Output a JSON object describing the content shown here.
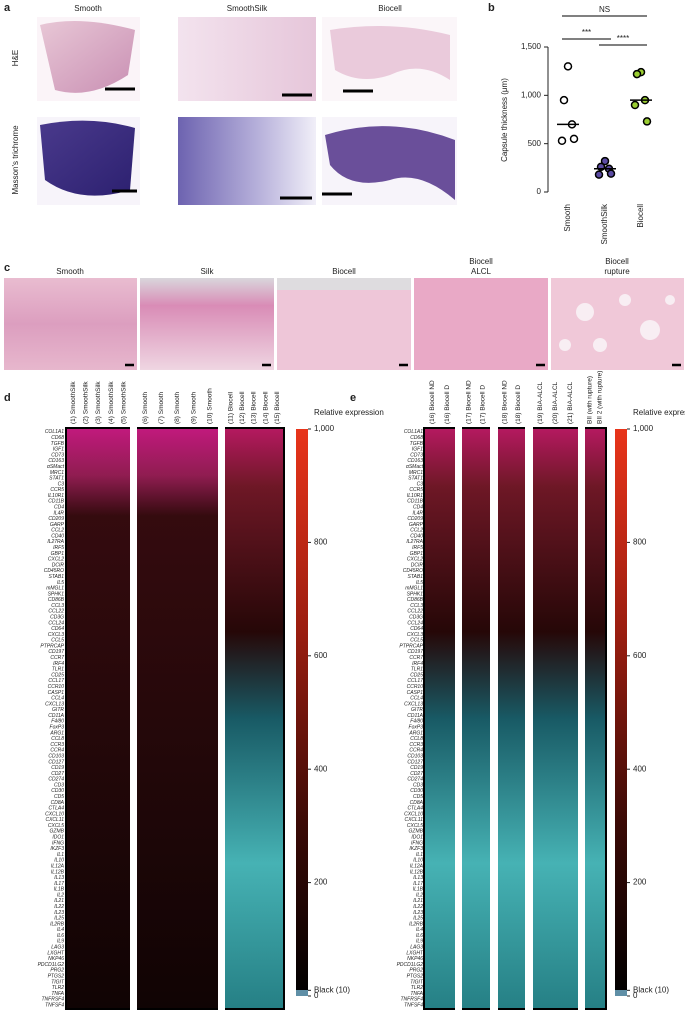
{
  "panel_a": {
    "label": "a",
    "columns": [
      "Smooth",
      "SmoothSilk",
      "Biocell"
    ],
    "rows": [
      "H&E",
      "Masson's trichrome"
    ]
  },
  "chart_data": {
    "type": "strip",
    "label": "b",
    "ylabel": "Capsule thickness (μm)",
    "categories": [
      "Smooth",
      "SmoothSilk",
      "Biocell"
    ],
    "colors": [
      "#ffffff",
      "#5b4ba3",
      "#9acd32"
    ],
    "values": [
      [
        1300,
        950,
        700,
        530,
        550
      ],
      [
        320,
        260,
        240,
        180,
        190
      ],
      [
        1240,
        1220,
        950,
        900,
        730
      ]
    ],
    "medians": [
      700,
      240,
      950
    ],
    "ylim": [
      0,
      1500
    ],
    "yticks": [
      0,
      500,
      {
        "value": 1000,
        "label": "1,000"
      },
      {
        "value": 1500,
        "label": "1,500"
      }
    ],
    "annotations": [
      "NS",
      "***",
      "****"
    ]
  },
  "panel_c": {
    "label": "c",
    "captions": [
      [
        "Smooth"
      ],
      [
        "Silk"
      ],
      [
        "Biocell"
      ],
      [
        "Biocell",
        "ALCL"
      ],
      [
        "Biocell",
        "rupture"
      ]
    ]
  },
  "panel_d": {
    "label": "d",
    "samples": [
      "(1) SmoothSilk",
      "(2) SmoothSilk",
      "(3) SmoothSilk",
      "(4) SmoothSilk",
      "(5) SmoothSilk",
      "(6) Smooth",
      "(7) Smooth",
      "(8) Smooth",
      "(9) Smooth",
      "(10) Smooth",
      "(11) Biocell",
      "(12) Biocell",
      "(13) Biocell",
      "(14) Biocell",
      "(15) Biocell"
    ],
    "genes": [
      "COL1A1",
      "CD68",
      "TGFB",
      "IGF1",
      "CD73",
      "CD163",
      "αSMact",
      "MRC1",
      "STAT1",
      "C3",
      "CCR5",
      "IL10R1",
      "CD11B",
      "CD4",
      "IL4R",
      "CD209",
      "GARP",
      "CCL2",
      "CD40",
      "IL27RA",
      "IRF5",
      "GBP1",
      "CXCL2",
      "DCIR",
      "CD45RO",
      "STAB1",
      "IL5",
      "mMGL1",
      "SPHK1",
      "CD86B",
      "CCL3",
      "CCL22",
      "CD3G",
      "CCL24",
      "CD64",
      "CXCL3",
      "CCL5",
      "PTPRCAP",
      "CD197",
      "CCR7",
      "IRF4",
      "TLR1",
      "CD25",
      "CCL17",
      "CCR10",
      "CASP1",
      "CCL4",
      "CXCL13",
      "GITR",
      "CD11A",
      "F4/80",
      "FoxP3",
      "ARG1",
      "CCL8",
      "CCR3",
      "CCR4",
      "CD103",
      "CD127",
      "CD19",
      "CD27",
      "CD274",
      "CD3",
      "CD30",
      "CD5",
      "CD8A",
      "CTLA4",
      "CXCL10",
      "CXCL11",
      "CXCL5",
      "GZMB",
      "IDO1",
      "IFNG",
      "IKZF3",
      "IL1",
      "IL10",
      "IL12A",
      "IL12B",
      "IL13",
      "IL17",
      "IL1B",
      "IL2",
      "IL21",
      "IL22",
      "IL23",
      "IL25",
      "IL2RB",
      "IL4",
      "IL6",
      "IL9",
      "LAG3",
      "LXGHT",
      "NKP46",
      "PDCD1LG2",
      "PRG2",
      "PTGS2",
      "TIGIT",
      "TLR2",
      "TNFA",
      "TNFRSF4",
      "TNFSF4"
    ],
    "colorbar": {
      "title": "Relative expression",
      "lim": [
        0,
        1000
      ],
      "ticks": [
        {
          "value": 1000,
          "label": "1,000"
        },
        800,
        600,
        400,
        200,
        {
          "value": 10,
          "label": "Black (10)"
        },
        0
      ]
    }
  },
  "panel_e": {
    "label": "e",
    "samples": [
      "(16) Biocell ND",
      "(16) Biocell D",
      "(17) Biocell ND",
      "(17) Biocell D",
      "(18) Biocell ND",
      "(18) Biocell D",
      "(19) BIA-ALCL",
      "(20) BIA-ALCL",
      "(21) BIA-ALCL",
      "BII (with rupture)",
      "BII 2 (with rupture)"
    ],
    "genes": [
      "COL1A1",
      "CD68",
      "TGFB",
      "IGF1",
      "CD73",
      "CD163",
      "αSMact",
      "MRC1",
      "STAT1",
      "C3",
      "CCR5",
      "IL10R1",
      "CD11B",
      "CD4",
      "IL4R",
      "CD209",
      "GARP",
      "CCL2",
      "CD40",
      "IL27RA",
      "IRF5",
      "GBP1",
      "CXCL2",
      "DCIR",
      "CD45RO",
      "STAB1",
      "IL5",
      "mMGL1",
      "SPHK1",
      "CD86B",
      "CCL3",
      "CCL22",
      "CD3G",
      "CCL24",
      "CD64",
      "CXCL3",
      "CCL5",
      "PTPRCAP",
      "CD197",
      "CCR7",
      "IRF4",
      "TLR1",
      "CD25",
      "CCL17",
      "CCR10",
      "CASP1",
      "CCL4",
      "CXCL13",
      "GITR",
      "CD11A",
      "F4/80",
      "FoxP3",
      "ARG1",
      "CCL8",
      "CCR3",
      "CCR4",
      "CD103",
      "CD127",
      "CD19",
      "CD27",
      "CD274",
      "CD3",
      "CD30",
      "CD5",
      "CD8A",
      "CTLA4",
      "CXCL10",
      "CXCL11",
      "CXCL5",
      "GZMB",
      "IDO1",
      "IFNG",
      "IKZF3",
      "IL1",
      "IL10",
      "IL12A",
      "IL12B",
      "IL13",
      "IL17",
      "IL1B",
      "IL2",
      "IL21",
      "IL22",
      "IL23",
      "IL25",
      "IL2RB",
      "IL4",
      "IL6",
      "IL9",
      "LAG3",
      "LXGHT",
      "NKP46",
      "PDCD1LG2",
      "PRG2",
      "PTGS2",
      "TIGIT",
      "TLR2",
      "TNFA",
      "TNFRSF4",
      "TNFSF4"
    ],
    "colorbar": {
      "title": "Relative expression",
      "lim": [
        0,
        1000
      ],
      "ticks": [
        {
          "value": 1000,
          "label": "1,000"
        },
        800,
        600,
        400,
        200,
        {
          "value": 10,
          "label": "Black (10)"
        },
        0
      ]
    }
  }
}
